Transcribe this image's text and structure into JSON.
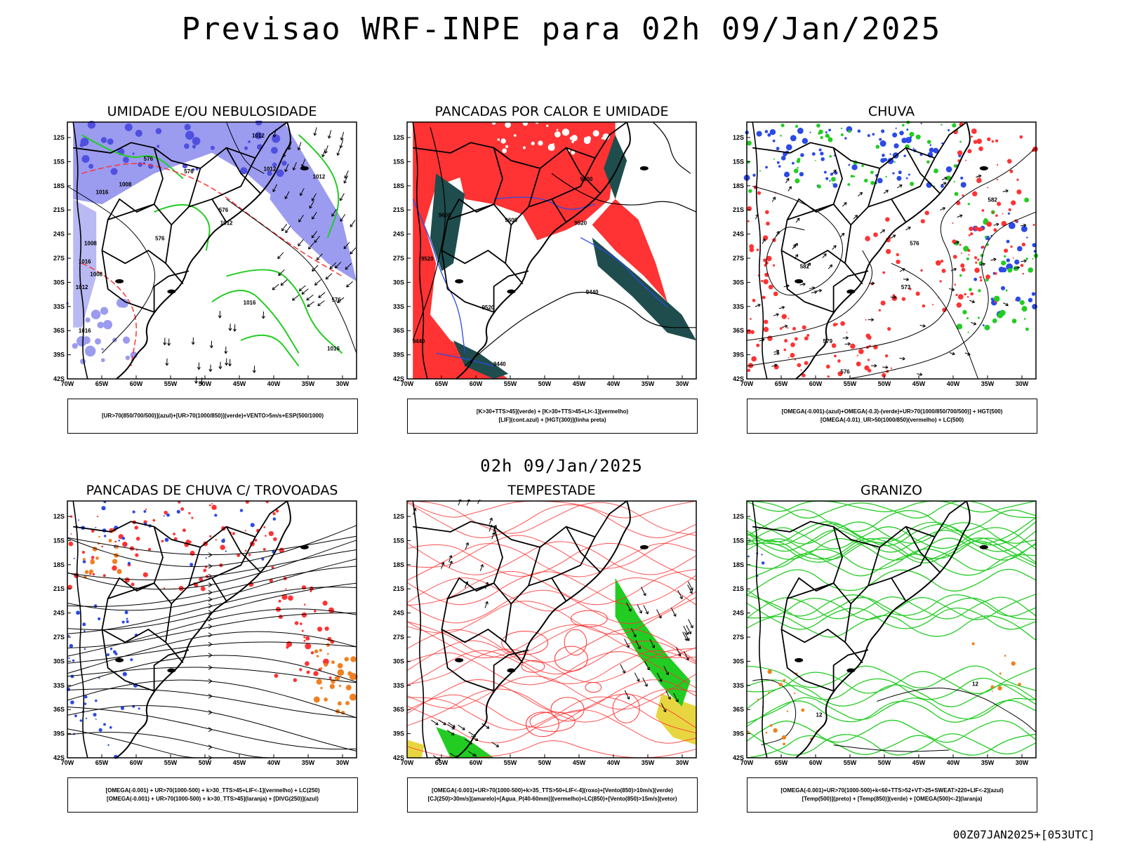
{
  "header": {
    "title": "Previsao WRF-INPE  para 02h 09/Jan/2025"
  },
  "middle": {
    "title": "02h 09/Jan/2025"
  },
  "footer": {
    "run": "00Z07JAN2025+[053UTC]"
  },
  "axes": {
    "lat_labels": [
      "12S",
      "15S",
      "18S",
      "21S",
      "24S",
      "27S",
      "30S",
      "33S",
      "36S",
      "39S",
      "42S"
    ],
    "lon_labels": [
      "70W",
      "65W",
      "60W",
      "55W",
      "50W",
      "45W",
      "40W",
      "35W",
      "30W"
    ]
  },
  "colors": {
    "humid_blue": "#9b9bf0",
    "humid_blue_dark": "#4f4fe0",
    "green": "#22cc22",
    "red": "#ff3333",
    "blue": "#2b4ae6",
    "orange": "#f08020",
    "teal": "#1f4d4d",
    "yellow": "#e8d640",
    "land_line": "#000000"
  },
  "panels": [
    {
      "title": "UMIDADE E/OU NEBULOSIDADE",
      "legend": [
        "[UR>70(850/700/500)](azul)+[UR>70(1000/850)](verde)+VENTO>5m/s+ESP(500/1000)"
      ],
      "labels": [
        "1012",
        "1012",
        "1008",
        "1016",
        "1008",
        "1016",
        "1008",
        "1012",
        "1016",
        "1012",
        "1016",
        "576",
        "576",
        "576",
        "576",
        "576",
        "1012",
        "1016"
      ]
    },
    {
      "title": "PANCADAS POR CALOR E UMIDADE",
      "legend": [
        "[K>30+TTS>45](verde) + [K>30+TTS>45+LI<-1](vermelho)",
        "[LIF](cont.azul) + [HGT(300)](linha preta)"
      ],
      "labels": [
        "9600",
        "9600",
        "9600",
        "9520",
        "9520",
        "9440",
        "9520",
        "9440",
        "9440"
      ]
    },
    {
      "title": "CHUVA",
      "legend": [
        "[OMEGA(-0.001)-(azul)+OMEGA(-0.3)-(verde)+UR>70(1000/850/700/500)] + HGT(500)",
        "[OMEGA(-0.01)_UR>50(1000/850)(vermelho) + LC(500)"
      ],
      "labels": [
        "582",
        "582",
        "576",
        "573",
        "579",
        "576"
      ]
    },
    {
      "title": "PANCADAS DE CHUVA C/ TROVOADAS",
      "legend": [
        "[OMEGA(-0.001) + UR>70(1000-500) + k>30_TTS>45+LIF<-1](vermelho) + LC(250)",
        "[OMEGA(-0.001) + UR>70(1000-500) + k>30_TTS>45](laranja) + [DIVG(250)](azul)"
      ],
      "labels": []
    },
    {
      "title": "TEMPESTADE",
      "legend": [
        "[OMEGA(-0.001)+UR>70(1000-500)+k>35_TTS>50+LIF<-4](roxo)+[Vento(850)>10m/s](verde)",
        "[CJ(250)>30m/s](amarelo)+[Agua_P(40-60mm)](vermelho)+LC(850)+[Vento(850)>15m/s](vetor)"
      ],
      "labels": []
    },
    {
      "title": "GRANIZO",
      "legend": [
        "[OMEGA(-0.001)+UR>70(1000-500)+k<60+TTS>52+VT>25+SWEAT>220+LIF<-2](azul)",
        "[Temp(500)](preto) + [Temp(850)](verde) + [OMEGA(500)<-2](laranja)"
      ],
      "labels": [
        "12",
        "12"
      ]
    }
  ]
}
